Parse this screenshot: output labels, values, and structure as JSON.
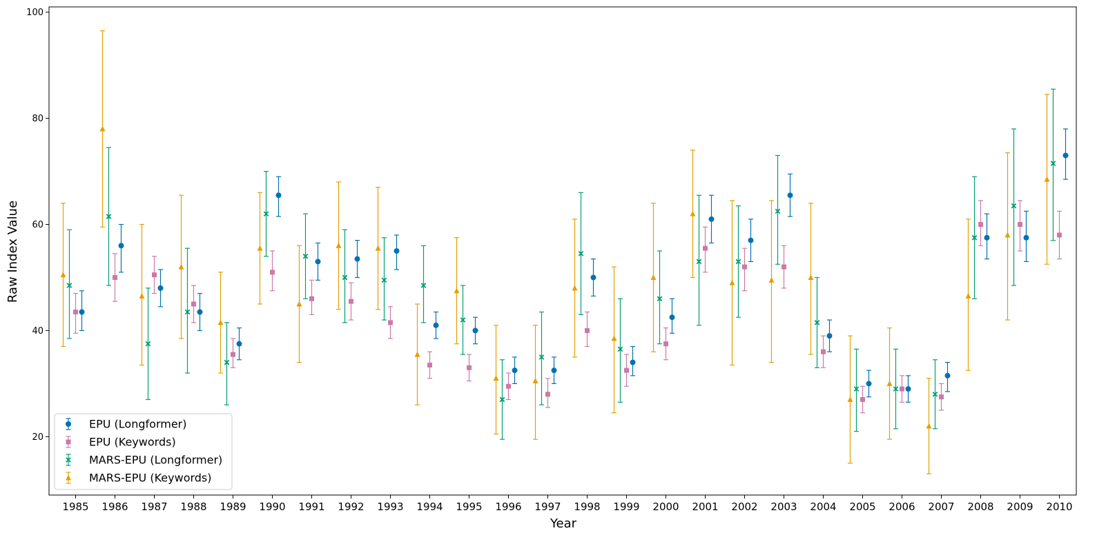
{
  "chart_data": {
    "type": "scatter",
    "title": "",
    "xlabel": "Year",
    "ylabel": "Raw Index Value",
    "ylim": [
      9,
      101
    ],
    "yticks": [
      20,
      40,
      60,
      80,
      100
    ],
    "grid": false,
    "legend_position": "bottom-left",
    "categories": [
      "1985",
      "1986",
      "1987",
      "1988",
      "1989",
      "1990",
      "1991",
      "1992",
      "1993",
      "1994",
      "1995",
      "1996",
      "1997",
      "1998",
      "1999",
      "2000",
      "2001",
      "2002",
      "2003",
      "2004",
      "2005",
      "2006",
      "2007",
      "2008",
      "2009",
      "2010"
    ],
    "series": [
      {
        "name": "MARS-EPU (Keywords)",
        "color": "#e69f00",
        "marker": "triangle",
        "values": [
          50.5,
          78.0,
          46.5,
          52.0,
          41.5,
          55.5,
          45.0,
          56.0,
          55.5,
          35.5,
          47.5,
          31.0,
          30.5,
          48.0,
          38.5,
          50.0,
          62.0,
          49.0,
          49.5,
          50.0,
          27.0,
          30.0,
          22.0,
          46.5,
          58.0,
          68.5
        ],
        "lower": [
          37.0,
          59.5,
          33.5,
          38.5,
          32.0,
          45.0,
          34.0,
          44.0,
          44.0,
          26.0,
          37.5,
          20.5,
          19.5,
          35.0,
          24.5,
          36.0,
          50.0,
          33.5,
          34.0,
          35.5,
          15.0,
          19.5,
          13.0,
          32.5,
          42.0,
          52.5
        ],
        "upper": [
          64.0,
          96.5,
          60.0,
          65.5,
          51.0,
          66.0,
          56.0,
          68.0,
          67.0,
          45.0,
          57.5,
          41.0,
          41.0,
          61.0,
          52.0,
          64.0,
          74.0,
          64.5,
          64.5,
          64.0,
          39.0,
          40.5,
          31.0,
          61.0,
          73.5,
          84.5
        ]
      },
      {
        "name": "MARS-EPU (Longformer)",
        "color": "#009e73",
        "marker": "x",
        "values": [
          48.5,
          61.5,
          37.5,
          43.5,
          34.0,
          62.0,
          54.0,
          50.0,
          49.5,
          48.5,
          42.0,
          27.0,
          35.0,
          54.5,
          36.5,
          46.0,
          53.0,
          53.0,
          62.5,
          41.5,
          29.0,
          29.0,
          28.0,
          57.5,
          63.5,
          71.5
        ],
        "lower": [
          38.5,
          48.5,
          27.0,
          32.0,
          26.0,
          54.0,
          46.0,
          41.5,
          42.0,
          41.5,
          35.5,
          19.5,
          26.0,
          43.0,
          26.5,
          37.5,
          41.0,
          42.5,
          52.5,
          33.0,
          21.0,
          21.5,
          21.5,
          46.0,
          48.5,
          57.0
        ],
        "upper": [
          59.0,
          74.5,
          48.0,
          55.5,
          41.5,
          70.0,
          62.0,
          59.0,
          57.5,
          56.0,
          48.5,
          34.5,
          43.5,
          66.0,
          46.0,
          55.0,
          65.5,
          63.5,
          73.0,
          50.0,
          36.5,
          36.5,
          34.5,
          69.0,
          78.0,
          85.5
        ]
      },
      {
        "name": "EPU (Keywords)",
        "color": "#cc79a7",
        "marker": "square",
        "values": [
          43.5,
          50.0,
          50.5,
          45.0,
          35.5,
          51.0,
          46.0,
          45.5,
          41.5,
          33.5,
          33.0,
          29.5,
          28.0,
          40.0,
          32.5,
          37.5,
          55.5,
          52.0,
          52.0,
          36.0,
          27.0,
          29.0,
          27.5,
          60.0,
          60.0,
          58.0
        ],
        "lower": [
          39.5,
          45.5,
          47.0,
          41.5,
          33.0,
          47.5,
          43.0,
          42.0,
          38.5,
          31.0,
          30.5,
          27.0,
          25.5,
          37.0,
          29.5,
          34.5,
          51.0,
          47.5,
          48.0,
          33.0,
          24.5,
          26.5,
          25.0,
          56.0,
          55.0,
          53.5
        ],
        "upper": [
          47.0,
          54.5,
          54.0,
          48.5,
          38.5,
          55.0,
          49.5,
          49.0,
          44.5,
          36.0,
          35.5,
          32.0,
          31.0,
          43.5,
          35.5,
          40.5,
          59.5,
          55.5,
          56.0,
          39.0,
          29.5,
          31.5,
          30.0,
          64.5,
          64.5,
          62.5
        ]
      },
      {
        "name": "EPU (Longformer)",
        "color": "#0072b2",
        "marker": "circle",
        "values": [
          43.5,
          56.0,
          48.0,
          43.5,
          37.5,
          65.5,
          53.0,
          53.5,
          55.0,
          41.0,
          40.0,
          32.5,
          32.5,
          50.0,
          34.0,
          42.5,
          61.0,
          57.0,
          65.5,
          39.0,
          30.0,
          29.0,
          31.5,
          57.5,
          57.5,
          73.0
        ],
        "lower": [
          40.0,
          51.0,
          44.5,
          40.0,
          34.5,
          61.5,
          49.5,
          50.0,
          51.5,
          38.5,
          37.5,
          30.0,
          30.0,
          46.5,
          31.5,
          39.5,
          56.5,
          53.0,
          61.5,
          36.0,
          27.5,
          26.5,
          28.5,
          53.5,
          53.0,
          68.5
        ],
        "upper": [
          47.5,
          60.0,
          51.5,
          47.0,
          40.5,
          69.0,
          56.5,
          57.0,
          58.0,
          43.5,
          42.5,
          35.0,
          35.0,
          53.5,
          37.0,
          46.0,
          65.5,
          61.0,
          69.5,
          42.0,
          32.5,
          31.5,
          34.0,
          62.0,
          62.5,
          78.0
        ]
      }
    ],
    "legend_order": [
      "EPU (Longformer)",
      "EPU (Keywords)",
      "MARS-EPU (Longformer)",
      "MARS-EPU (Keywords)"
    ]
  }
}
